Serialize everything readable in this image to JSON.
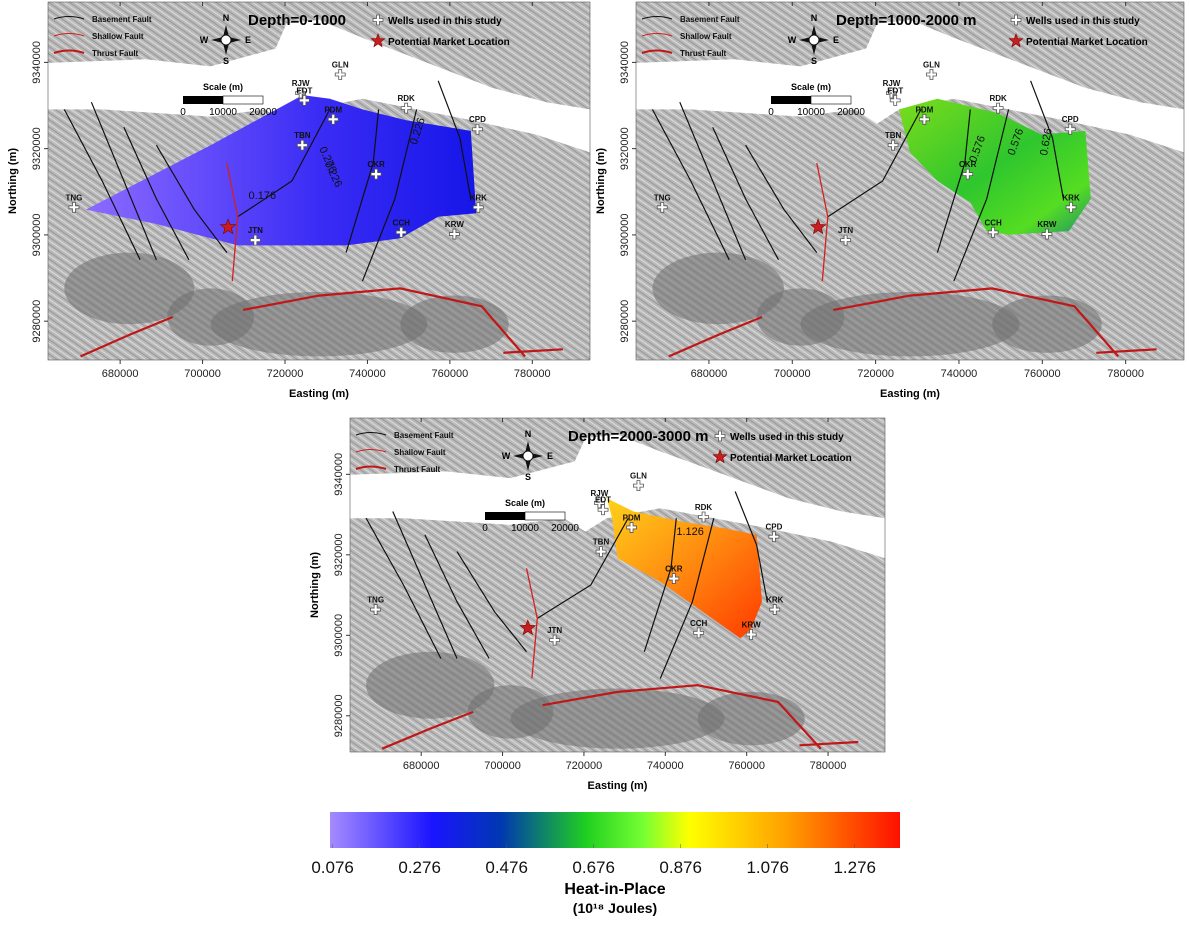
{
  "legend": {
    "basement_fault": "Basement Fault",
    "shallow_fault": "Shallow Fault",
    "thrust_fault": "Thrust Fault",
    "wells": "Wells used in this study",
    "market": "Potential Market Location"
  },
  "compass": {
    "n": "N",
    "s": "S",
    "w": "W",
    "e": "E"
  },
  "scale": {
    "title": "Scale (m)",
    "ticks": [
      0,
      10000,
      20000
    ]
  },
  "axes": {
    "x_label": "Easting (m)",
    "y_label": "Northing (m)",
    "xlim": [
      662500,
      794000
    ],
    "ylim": [
      9271000,
      9354000
    ],
    "xticks": [
      680000,
      700000,
      720000,
      740000,
      760000,
      780000
    ],
    "yticks": [
      9280000,
      9300000,
      9320000,
      9340000
    ]
  },
  "wells": [
    {
      "name": "TNG",
      "easting": 668800,
      "northing": 9306400
    },
    {
      "name": "RJW",
      "easting": 723800,
      "northing": 9332900
    },
    {
      "name": "EDT",
      "easting": 724700,
      "northing": 9331200
    },
    {
      "name": "GLN",
      "easting": 733400,
      "northing": 9337200
    },
    {
      "name": "PDM",
      "easting": 731700,
      "northing": 9326800
    },
    {
      "name": "TBN",
      "easting": 724200,
      "northing": 9320800
    },
    {
      "name": "RDK",
      "easting": 749400,
      "northing": 9329400
    },
    {
      "name": "CPD",
      "easting": 766700,
      "northing": 9324500
    },
    {
      "name": "CKR",
      "easting": 742100,
      "northing": 9314100
    },
    {
      "name": "KRK",
      "easting": 766900,
      "northing": 9306400
    },
    {
      "name": "CCH",
      "easting": 748200,
      "northing": 9300600
    },
    {
      "name": "KRW",
      "easting": 761100,
      "northing": 9300200
    },
    {
      "name": "JTN",
      "easting": 712800,
      "northing": 9298800
    }
  ],
  "market": {
    "easting": 706200,
    "northing": 9301800
  },
  "maps": [
    {
      "title": "Depth=0-1000",
      "contour_labels": [
        0.276,
        0.226,
        0.226,
        0.176
      ]
    },
    {
      "title": "Depth=1000-2000 m",
      "contour_labels": [
        0.576,
        0.576,
        0.626
      ]
    },
    {
      "title": "Depth=2000-3000 m",
      "contour_labels": [
        1.126
      ]
    }
  ],
  "colorbar": {
    "title": "Heat-in-Place",
    "unit": "(10¹⁸ Joules)",
    "lim": [
      0.07,
      1.38
    ],
    "ticks": [
      0.076,
      0.276,
      0.476,
      0.676,
      0.876,
      1.076,
      1.276
    ]
  }
}
